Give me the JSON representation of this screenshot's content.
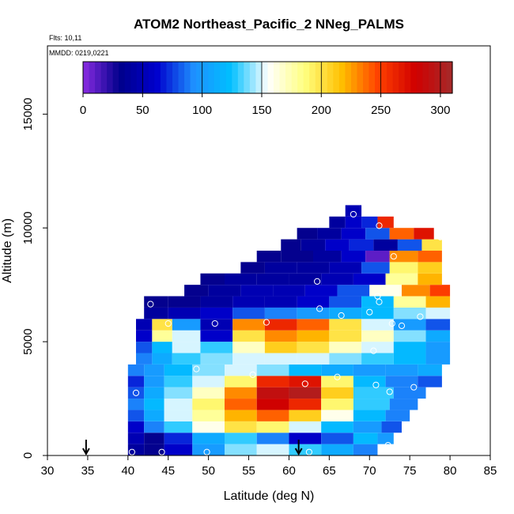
{
  "chart_data": {
    "type": "heatmap",
    "title": "ATOM2 Northeast_Pacific_2 NNeg_PALMS",
    "annotations": [
      "Flts: 10,11",
      "MMDD: 0219,0221"
    ],
    "xlabel": "Latitude (deg N)",
    "ylabel": "Altitude (m)",
    "xlim": [
      30,
      85
    ],
    "ylim": [
      0,
      18000
    ],
    "x_ticks": [
      "30",
      "35",
      "40",
      "45",
      "50",
      "55",
      "60",
      "65",
      "70",
      "75",
      "80",
      "85"
    ],
    "y_ticks": [
      "0",
      "5000",
      "10000",
      "15000"
    ],
    "colorbar": {
      "ticks": [
        "0",
        "50",
        "100",
        "150",
        "200",
        "250",
        "300"
      ],
      "range": [
        0,
        310
      ],
      "colors": [
        "#8a2be2",
        "#00008b",
        "#0000cd",
        "#1e90ff",
        "#00bfff",
        "#ffffff",
        "#ffff80",
        "#ffc000",
        "#ff4000",
        "#d00000",
        "#a52a2a"
      ]
    },
    "markers_latitude": [
      34.8,
      61.2
    ],
    "grid": false,
    "cells": [
      {
        "lat": 41,
        "alt": 250,
        "value": 40
      },
      {
        "lat": 43,
        "alt": 250,
        "value": 30
      },
      {
        "lat": 46,
        "alt": 250,
        "value": 60
      },
      {
        "lat": 50,
        "alt": 250,
        "value": 100
      },
      {
        "lat": 54,
        "alt": 250,
        "value": 140
      },
      {
        "lat": 58,
        "alt": 250,
        "value": 150
      },
      {
        "lat": 62,
        "alt": 250,
        "value": 130
      },
      {
        "lat": 66,
        "alt": 250,
        "value": 110
      },
      {
        "lat": 70,
        "alt": 250,
        "value": 90
      },
      {
        "lat": 41,
        "alt": 750,
        "value": 50
      },
      {
        "lat": 43,
        "alt": 750,
        "value": 30
      },
      {
        "lat": 46,
        "alt": 750,
        "value": 70
      },
      {
        "lat": 50,
        "alt": 750,
        "value": 110
      },
      {
        "lat": 54,
        "alt": 750,
        "value": 130
      },
      {
        "lat": 58,
        "alt": 750,
        "value": 90
      },
      {
        "lat": 62,
        "alt": 750,
        "value": 60
      },
      {
        "lat": 66,
        "alt": 750,
        "value": 80
      },
      {
        "lat": 70,
        "alt": 750,
        "value": 120
      },
      {
        "lat": 72,
        "alt": 750,
        "value": 100
      },
      {
        "lat": 41,
        "alt": 1250,
        "value": 60
      },
      {
        "lat": 43,
        "alt": 1250,
        "value": 90
      },
      {
        "lat": 46,
        "alt": 1250,
        "value": 130
      },
      {
        "lat": 50,
        "alt": 1250,
        "value": 160
      },
      {
        "lat": 54,
        "alt": 1250,
        "value": 200
      },
      {
        "lat": 58,
        "alt": 1250,
        "value": 190
      },
      {
        "lat": 62,
        "alt": 1250,
        "value": 150
      },
      {
        "lat": 66,
        "alt": 1250,
        "value": 120
      },
      {
        "lat": 70,
        "alt": 1250,
        "value": 100
      },
      {
        "lat": 73,
        "alt": 1250,
        "value": 80
      },
      {
        "lat": 41,
        "alt": 1750,
        "value": 80
      },
      {
        "lat": 43,
        "alt": 1750,
        "value": 110
      },
      {
        "lat": 46,
        "alt": 1750,
        "value": 150
      },
      {
        "lat": 50,
        "alt": 1750,
        "value": 180
      },
      {
        "lat": 54,
        "alt": 1750,
        "value": 220
      },
      {
        "lat": 58,
        "alt": 1750,
        "value": 240
      },
      {
        "lat": 62,
        "alt": 1750,
        "value": 210
      },
      {
        "lat": 66,
        "alt": 1750,
        "value": 160
      },
      {
        "lat": 70,
        "alt": 1750,
        "value": 120
      },
      {
        "lat": 74,
        "alt": 1750,
        "value": 90
      },
      {
        "lat": 41,
        "alt": 2250,
        "value": 90
      },
      {
        "lat": 43,
        "alt": 2250,
        "value": 120
      },
      {
        "lat": 46,
        "alt": 2250,
        "value": 150
      },
      {
        "lat": 50,
        "alt": 2250,
        "value": 190
      },
      {
        "lat": 54,
        "alt": 2250,
        "value": 240
      },
      {
        "lat": 58,
        "alt": 2250,
        "value": 280
      },
      {
        "lat": 62,
        "alt": 2250,
        "value": 260
      },
      {
        "lat": 66,
        "alt": 2250,
        "value": 190
      },
      {
        "lat": 70,
        "alt": 2250,
        "value": 130
      },
      {
        "lat": 75,
        "alt": 2250,
        "value": 90
      },
      {
        "lat": 41,
        "alt": 2750,
        "value": 80
      },
      {
        "lat": 43,
        "alt": 2750,
        "value": 110
      },
      {
        "lat": 46,
        "alt": 2750,
        "value": 140
      },
      {
        "lat": 50,
        "alt": 2750,
        "value": 170
      },
      {
        "lat": 54,
        "alt": 2750,
        "value": 230
      },
      {
        "lat": 58,
        "alt": 2750,
        "value": 290
      },
      {
        "lat": 62,
        "alt": 2750,
        "value": 300
      },
      {
        "lat": 66,
        "alt": 2750,
        "value": 210
      },
      {
        "lat": 70,
        "alt": 2750,
        "value": 130
      },
      {
        "lat": 76,
        "alt": 2750,
        "value": 90
      },
      {
        "lat": 41,
        "alt": 3250,
        "value": 70
      },
      {
        "lat": 43,
        "alt": 3250,
        "value": 100
      },
      {
        "lat": 46,
        "alt": 3250,
        "value": 130
      },
      {
        "lat": 50,
        "alt": 3250,
        "value": 150
      },
      {
        "lat": 54,
        "alt": 3250,
        "value": 190
      },
      {
        "lat": 58,
        "alt": 3250,
        "value": 260
      },
      {
        "lat": 62,
        "alt": 3250,
        "value": 270
      },
      {
        "lat": 66,
        "alt": 3250,
        "value": 190
      },
      {
        "lat": 70,
        "alt": 3250,
        "value": 120
      },
      {
        "lat": 74,
        "alt": 3250,
        "value": 90
      },
      {
        "lat": 78,
        "alt": 3250,
        "value": 80
      },
      {
        "lat": 41,
        "alt": 3750,
        "value": 90
      },
      {
        "lat": 43,
        "alt": 3750,
        "value": 100
      },
      {
        "lat": 46,
        "alt": 3750,
        "value": 120
      },
      {
        "lat": 50,
        "alt": 3750,
        "value": 140
      },
      {
        "lat": 54,
        "alt": 3750,
        "value": 150
      },
      {
        "lat": 58,
        "alt": 3750,
        "value": 140
      },
      {
        "lat": 62,
        "alt": 3750,
        "value": 120
      },
      {
        "lat": 66,
        "alt": 3750,
        "value": 110
      },
      {
        "lat": 70,
        "alt": 3750,
        "value": 100
      },
      {
        "lat": 74,
        "alt": 3750,
        "value": 100
      },
      {
        "lat": 78,
        "alt": 3750,
        "value": 110
      },
      {
        "lat": 42,
        "alt": 4250,
        "value": 90
      },
      {
        "lat": 44,
        "alt": 4250,
        "value": 110
      },
      {
        "lat": 47,
        "alt": 4250,
        "value": 130
      },
      {
        "lat": 51,
        "alt": 4250,
        "value": 140
      },
      {
        "lat": 55,
        "alt": 4250,
        "value": 150
      },
      {
        "lat": 59,
        "alt": 4250,
        "value": 150
      },
      {
        "lat": 63,
        "alt": 4250,
        "value": 150
      },
      {
        "lat": 67,
        "alt": 4250,
        "value": 140
      },
      {
        "lat": 71,
        "alt": 4250,
        "value": 130
      },
      {
        "lat": 75,
        "alt": 4250,
        "value": 120
      },
      {
        "lat": 79,
        "alt": 4250,
        "value": 100
      },
      {
        "lat": 42,
        "alt": 4750,
        "value": 80
      },
      {
        "lat": 44,
        "alt": 4750,
        "value": 120
      },
      {
        "lat": 47,
        "alt": 4750,
        "value": 150
      },
      {
        "lat": 51,
        "alt": 4750,
        "value": 130
      },
      {
        "lat": 55,
        "alt": 4750,
        "value": 170
      },
      {
        "lat": 59,
        "alt": 4750,
        "value": 210
      },
      {
        "lat": 63,
        "alt": 4750,
        "value": 200
      },
      {
        "lat": 67,
        "alt": 4750,
        "value": 170
      },
      {
        "lat": 71,
        "alt": 4750,
        "value": 150
      },
      {
        "lat": 75,
        "alt": 4750,
        "value": 120
      },
      {
        "lat": 79,
        "alt": 4750,
        "value": 100
      },
      {
        "lat": 42,
        "alt": 5250,
        "value": 60
      },
      {
        "lat": 44,
        "alt": 5250,
        "value": 180
      },
      {
        "lat": 47,
        "alt": 5250,
        "value": 150
      },
      {
        "lat": 51,
        "alt": 5250,
        "value": 60
      },
      {
        "lat": 55,
        "alt": 5250,
        "value": 200
      },
      {
        "lat": 59,
        "alt": 5250,
        "value": 230
      },
      {
        "lat": 63,
        "alt": 5250,
        "value": 220
      },
      {
        "lat": 67,
        "alt": 5250,
        "value": 200
      },
      {
        "lat": 71,
        "alt": 5250,
        "value": 170
      },
      {
        "lat": 75,
        "alt": 5250,
        "value": 140
      },
      {
        "lat": 79,
        "alt": 5250,
        "value": 110
      },
      {
        "lat": 42,
        "alt": 5750,
        "value": 50
      },
      {
        "lat": 44,
        "alt": 5750,
        "value": 200
      },
      {
        "lat": 47,
        "alt": 5750,
        "value": 100
      },
      {
        "lat": 51,
        "alt": 5750,
        "value": 50
      },
      {
        "lat": 55,
        "alt": 5750,
        "value": 230
      },
      {
        "lat": 59,
        "alt": 5750,
        "value": 260
      },
      {
        "lat": 63,
        "alt": 5750,
        "value": 240
      },
      {
        "lat": 67,
        "alt": 5750,
        "value": 200
      },
      {
        "lat": 71,
        "alt": 5750,
        "value": 150
      },
      {
        "lat": 75,
        "alt": 5750,
        "value": 100
      },
      {
        "lat": 79,
        "alt": 5750,
        "value": 80
      },
      {
        "lat": 43,
        "alt": 6250,
        "value": 40
      },
      {
        "lat": 47,
        "alt": 6250,
        "value": 50
      },
      {
        "lat": 51,
        "alt": 6250,
        "value": 60
      },
      {
        "lat": 55,
        "alt": 6250,
        "value": 80
      },
      {
        "lat": 59,
        "alt": 6250,
        "value": 90
      },
      {
        "lat": 63,
        "alt": 6250,
        "value": 100
      },
      {
        "lat": 67,
        "alt": 6250,
        "value": 110
      },
      {
        "lat": 71,
        "alt": 6250,
        "value": 120
      },
      {
        "lat": 75,
        "alt": 6250,
        "value": 140
      },
      {
        "lat": 79,
        "alt": 6250,
        "value": 150
      },
      {
        "lat": 43,
        "alt": 6750,
        "value": 30
      },
      {
        "lat": 47,
        "alt": 6750,
        "value": 30
      },
      {
        "lat": 51,
        "alt": 6750,
        "value": 40
      },
      {
        "lat": 55,
        "alt": 6750,
        "value": 50
      },
      {
        "lat": 59,
        "alt": 6750,
        "value": 50
      },
      {
        "lat": 63,
        "alt": 6750,
        "value": 60
      },
      {
        "lat": 67,
        "alt": 6750,
        "value": 80
      },
      {
        "lat": 71,
        "alt": 6750,
        "value": 120
      },
      {
        "lat": 75,
        "alt": 6750,
        "value": 180
      },
      {
        "lat": 79,
        "alt": 6750,
        "value": 220
      },
      {
        "lat": 48,
        "alt": 7250,
        "value": 30
      },
      {
        "lat": 52,
        "alt": 7250,
        "value": 40
      },
      {
        "lat": 56,
        "alt": 7250,
        "value": 50
      },
      {
        "lat": 60,
        "alt": 7250,
        "value": 50
      },
      {
        "lat": 64,
        "alt": 7250,
        "value": 60
      },
      {
        "lat": 68,
        "alt": 7250,
        "value": 80
      },
      {
        "lat": 72,
        "alt": 7250,
        "value": 160
      },
      {
        "lat": 76,
        "alt": 7250,
        "value": 230
      },
      {
        "lat": 79,
        "alt": 7250,
        "value": 250
      },
      {
        "lat": 50,
        "alt": 7750,
        "value": 30
      },
      {
        "lat": 54,
        "alt": 7750,
        "value": 40
      },
      {
        "lat": 58,
        "alt": 7750,
        "value": 40
      },
      {
        "lat": 62,
        "alt": 7750,
        "value": 40
      },
      {
        "lat": 66,
        "alt": 7750,
        "value": 50
      },
      {
        "lat": 70,
        "alt": 7750,
        "value": 60
      },
      {
        "lat": 74,
        "alt": 7750,
        "value": 180
      },
      {
        "lat": 78,
        "alt": 7750,
        "value": 220
      },
      {
        "lat": 55,
        "alt": 8250,
        "value": 30
      },
      {
        "lat": 59,
        "alt": 8250,
        "value": 40
      },
      {
        "lat": 63,
        "alt": 8250,
        "value": 40
      },
      {
        "lat": 67,
        "alt": 8250,
        "value": 50
      },
      {
        "lat": 71,
        "alt": 8250,
        "value": 80
      },
      {
        "lat": 74,
        "alt": 8250,
        "value": 190
      },
      {
        "lat": 78,
        "alt": 8250,
        "value": 210
      },
      {
        "lat": 57,
        "alt": 8750,
        "value": 30
      },
      {
        "lat": 61,
        "alt": 8750,
        "value": 30
      },
      {
        "lat": 65,
        "alt": 8750,
        "value": 40
      },
      {
        "lat": 68,
        "alt": 8750,
        "value": 60
      },
      {
        "lat": 71,
        "alt": 8750,
        "value": 10
      },
      {
        "lat": 74,
        "alt": 8750,
        "value": 230
      },
      {
        "lat": 78,
        "alt": 8750,
        "value": 240
      },
      {
        "lat": 60,
        "alt": 9250,
        "value": 30
      },
      {
        "lat": 63,
        "alt": 9250,
        "value": 40
      },
      {
        "lat": 66,
        "alt": 9250,
        "value": 60
      },
      {
        "lat": 69,
        "alt": 9250,
        "value": 70
      },
      {
        "lat": 72,
        "alt": 9250,
        "value": 40
      },
      {
        "lat": 75,
        "alt": 9250,
        "value": 80
      },
      {
        "lat": 78,
        "alt": 9250,
        "value": 200
      },
      {
        "lat": 62,
        "alt": 9750,
        "value": 30
      },
      {
        "lat": 65,
        "alt": 9750,
        "value": 40
      },
      {
        "lat": 68,
        "alt": 9750,
        "value": 60
      },
      {
        "lat": 71,
        "alt": 9750,
        "value": 80
      },
      {
        "lat": 74,
        "alt": 9750,
        "value": 240
      },
      {
        "lat": 77,
        "alt": 9750,
        "value": 270
      },
      {
        "lat": 66,
        "alt": 10250,
        "value": 40
      },
      {
        "lat": 68,
        "alt": 10250,
        "value": 60
      },
      {
        "lat": 70,
        "alt": 10250,
        "value": 70
      },
      {
        "lat": 72,
        "alt": 10250,
        "value": 260
      },
      {
        "lat": 68,
        "alt": 10750,
        "value": 50
      }
    ],
    "sample_points": [
      {
        "lat": 40.5,
        "alt": 150
      },
      {
        "lat": 44.2,
        "alt": 150
      },
      {
        "lat": 49.8,
        "alt": 150
      },
      {
        "lat": 62.5,
        "alt": 150
      },
      {
        "lat": 71.5,
        "alt": 250
      },
      {
        "lat": 72.3,
        "alt": 450
      },
      {
        "lat": 41.0,
        "alt": 2750
      },
      {
        "lat": 48.5,
        "alt": 3800
      },
      {
        "lat": 55.5,
        "alt": 3550
      },
      {
        "lat": 62.0,
        "alt": 3150
      },
      {
        "lat": 66.0,
        "alt": 3450
      },
      {
        "lat": 70.8,
        "alt": 3100
      },
      {
        "lat": 72.5,
        "alt": 2800
      },
      {
        "lat": 75.5,
        "alt": 3000
      },
      {
        "lat": 80.3,
        "alt": 3700
      },
      {
        "lat": 45.0,
        "alt": 5800
      },
      {
        "lat": 50.8,
        "alt": 5800
      },
      {
        "lat": 57.2,
        "alt": 5850
      },
      {
        "lat": 72.8,
        "alt": 5800
      },
      {
        "lat": 74.0,
        "alt": 5700
      },
      {
        "lat": 70.5,
        "alt": 4600
      },
      {
        "lat": 42.8,
        "alt": 6650
      },
      {
        "lat": 63.8,
        "alt": 6450
      },
      {
        "lat": 66.5,
        "alt": 6150
      },
      {
        "lat": 70.0,
        "alt": 6300
      },
      {
        "lat": 71.2,
        "alt": 6750
      },
      {
        "lat": 71.0,
        "alt": 7000
      },
      {
        "lat": 76.3,
        "alt": 6100
      },
      {
        "lat": 63.5,
        "alt": 7650
      },
      {
        "lat": 73.0,
        "alt": 8750
      },
      {
        "lat": 78.8,
        "alt": 9600
      },
      {
        "lat": 71.2,
        "alt": 10100
      },
      {
        "lat": 68.0,
        "alt": 10600
      }
    ]
  }
}
